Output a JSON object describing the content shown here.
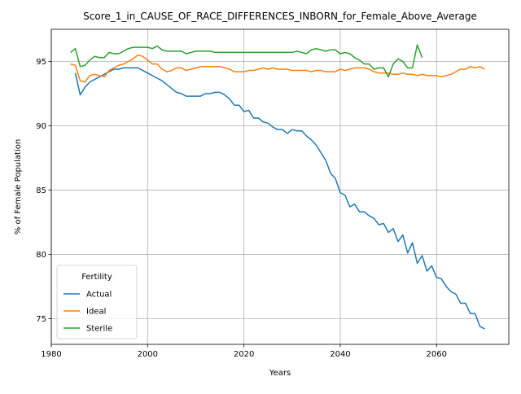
{
  "chart_data": {
    "type": "line",
    "title": "Score_1_in_CAUSE_OF_RACE_DIFFERENCES_INBORN_for_Female_Above_Average",
    "xlabel": "Years",
    "ylabel": "% of Female Population",
    "xlim": [
      1980,
      2075
    ],
    "ylim": [
      73,
      97.5
    ],
    "xticks": [
      1980,
      2000,
      2020,
      2040,
      2060
    ],
    "yticks": [
      75,
      80,
      85,
      90,
      95
    ],
    "grid": true,
    "legend": {
      "title": "Fertility",
      "placement": "lower-left"
    },
    "series": [
      {
        "name": "Actual",
        "color": "#1f77b4",
        "x": [
          1985,
          1986,
          1987,
          1988,
          1989,
          1990,
          1991,
          1992,
          1993,
          1994,
          1995,
          1996,
          1997,
          1998,
          1999,
          2000,
          2001,
          2002,
          2003,
          2004,
          2005,
          2006,
          2007,
          2008,
          2009,
          2010,
          2011,
          2012,
          2013,
          2014,
          2015,
          2016,
          2017,
          2018,
          2019,
          2020,
          2021,
          2022,
          2023,
          2024,
          2025,
          2026,
          2027,
          2028,
          2029,
          2030,
          2031,
          2032,
          2033,
          2034,
          2035,
          2036,
          2037,
          2038,
          2039,
          2040,
          2041,
          2042,
          2043,
          2044,
          2045,
          2046,
          2047,
          2048,
          2049,
          2050,
          2051,
          2052,
          2053,
          2054,
          2055,
          2056,
          2057,
          2058,
          2059,
          2060,
          2061,
          2062,
          2063,
          2064,
          2065,
          2066,
          2067,
          2068,
          2069,
          2070
        ],
        "y": [
          94.1,
          92.4,
          93.0,
          93.4,
          93.6,
          93.8,
          94.0,
          94.2,
          94.4,
          94.4,
          94.5,
          94.5,
          94.5,
          94.5,
          94.3,
          94.1,
          93.9,
          93.7,
          93.5,
          93.2,
          92.9,
          92.6,
          92.5,
          92.3,
          92.3,
          92.3,
          92.3,
          92.5,
          92.5,
          92.6,
          92.6,
          92.4,
          92.1,
          91.6,
          91.6,
          91.1,
          91.2,
          90.6,
          90.6,
          90.3,
          90.2,
          89.9,
          89.7,
          89.7,
          89.4,
          89.7,
          89.6,
          89.6,
          89.2,
          88.9,
          88.5,
          87.9,
          87.3,
          86.3,
          85.9,
          84.8,
          84.6,
          83.7,
          83.9,
          83.3,
          83.3,
          83.0,
          82.8,
          82.3,
          82.4,
          81.7,
          82.0,
          81.0,
          81.5,
          80.1,
          80.9,
          79.3,
          79.9,
          78.7,
          79.1,
          78.2,
          78.1,
          77.5,
          77.1,
          76.9,
          76.2,
          76.2,
          75.4,
          75.4,
          74.4,
          74.2
        ]
      },
      {
        "name": "Ideal",
        "color": "#ff7f0e",
        "x": [
          1984,
          1985,
          1986,
          1987,
          1988,
          1989,
          1990,
          1991,
          1992,
          1993,
          1994,
          1995,
          1996,
          1997,
          1998,
          1999,
          2000,
          2001,
          2002,
          2003,
          2004,
          2005,
          2006,
          2007,
          2008,
          2009,
          2010,
          2011,
          2012,
          2013,
          2014,
          2015,
          2016,
          2017,
          2018,
          2019,
          2020,
          2021,
          2022,
          2023,
          2024,
          2025,
          2026,
          2027,
          2028,
          2029,
          2030,
          2031,
          2032,
          2033,
          2034,
          2035,
          2036,
          2037,
          2038,
          2039,
          2040,
          2041,
          2042,
          2043,
          2044,
          2045,
          2046,
          2047,
          2048,
          2049,
          2050,
          2051,
          2052,
          2053,
          2054,
          2055,
          2056,
          2057,
          2058,
          2059,
          2060,
          2061,
          2062,
          2063,
          2064,
          2065,
          2066,
          2067,
          2068,
          2069,
          2070
        ],
        "y": [
          94.8,
          94.7,
          93.5,
          93.4,
          93.9,
          94.0,
          93.9,
          93.8,
          94.3,
          94.5,
          94.7,
          94.8,
          95.0,
          95.2,
          95.5,
          95.4,
          95.1,
          94.8,
          94.8,
          94.4,
          94.2,
          94.3,
          94.5,
          94.5,
          94.3,
          94.4,
          94.5,
          94.6,
          94.6,
          94.6,
          94.6,
          94.6,
          94.5,
          94.4,
          94.2,
          94.2,
          94.2,
          94.3,
          94.3,
          94.4,
          94.5,
          94.4,
          94.5,
          94.4,
          94.4,
          94.4,
          94.3,
          94.3,
          94.3,
          94.3,
          94.2,
          94.3,
          94.3,
          94.2,
          94.2,
          94.2,
          94.4,
          94.3,
          94.4,
          94.5,
          94.5,
          94.5,
          94.4,
          94.2,
          94.1,
          94.1,
          94.1,
          94.0,
          94.0,
          94.1,
          94.0,
          94.0,
          93.9,
          94.0,
          93.9,
          93.9,
          93.9,
          93.8,
          93.9,
          94.0,
          94.2,
          94.4,
          94.4,
          94.6,
          94.5,
          94.6,
          94.4
        ]
      },
      {
        "name": "Sterile",
        "color": "#2ca02c",
        "x": [
          1984,
          1985,
          1986,
          1987,
          1988,
          1989,
          1990,
          1991,
          1992,
          1993,
          1994,
          1995,
          1996,
          1997,
          1998,
          1999,
          2000,
          2001,
          2002,
          2003,
          2004,
          2005,
          2006,
          2007,
          2008,
          2009,
          2010,
          2011,
          2012,
          2013,
          2014,
          2015,
          2016,
          2017,
          2018,
          2019,
          2020,
          2021,
          2022,
          2023,
          2024,
          2025,
          2026,
          2027,
          2028,
          2029,
          2030,
          2031,
          2032,
          2033,
          2034,
          2035,
          2036,
          2037,
          2038,
          2039,
          2040,
          2041,
          2042,
          2043,
          2044,
          2045,
          2046,
          2047,
          2048,
          2049,
          2050,
          2051,
          2052,
          2053,
          2054,
          2055,
          2056,
          2057,
          2058
        ],
        "y": [
          95.7,
          96.0,
          94.6,
          94.7,
          95.1,
          95.4,
          95.3,
          95.3,
          95.7,
          95.6,
          95.6,
          95.8,
          96.0,
          96.1,
          96.1,
          96.1,
          96.1,
          96.0,
          96.2,
          95.9,
          95.8,
          95.8,
          95.8,
          95.8,
          95.6,
          95.7,
          95.8,
          95.8,
          95.8,
          95.8,
          95.7,
          95.7,
          95.7,
          95.7,
          95.7,
          95.7,
          95.7,
          95.7,
          95.7,
          95.7,
          95.7,
          95.7,
          95.7,
          95.7,
          95.7,
          95.7,
          95.7,
          95.8,
          95.7,
          95.6,
          95.9,
          96.0,
          95.9,
          95.8,
          95.9,
          95.9,
          95.6,
          95.7,
          95.6,
          95.3,
          95.1,
          94.8,
          94.8,
          94.4,
          94.5,
          94.5,
          93.8,
          94.8,
          95.2,
          95.0,
          94.5,
          94.5,
          96.3,
          95.3,
          null
        ]
      }
    ]
  }
}
